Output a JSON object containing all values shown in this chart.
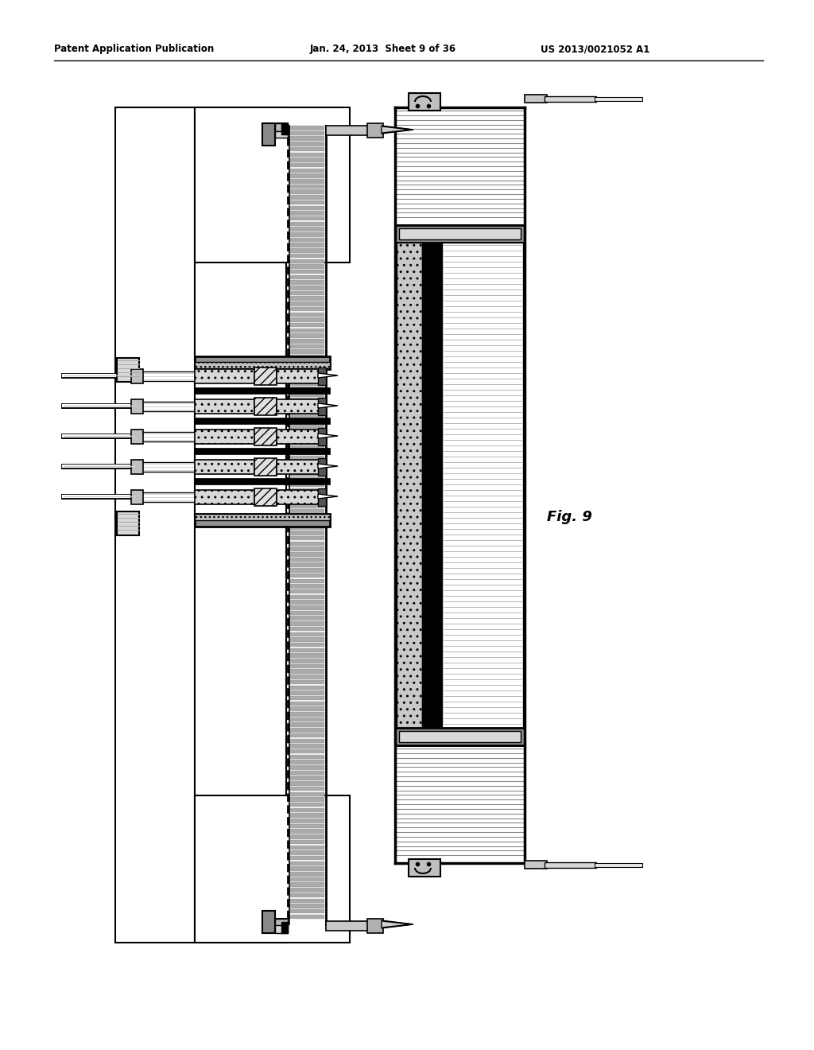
{
  "header_left": "Patent Application Publication",
  "header_mid": "Jan. 24, 2013  Sheet 9 of 36",
  "header_right": "US 2013/0021052 A1",
  "fig_label": "Fig. 9",
  "bg_color": "#ffffff"
}
